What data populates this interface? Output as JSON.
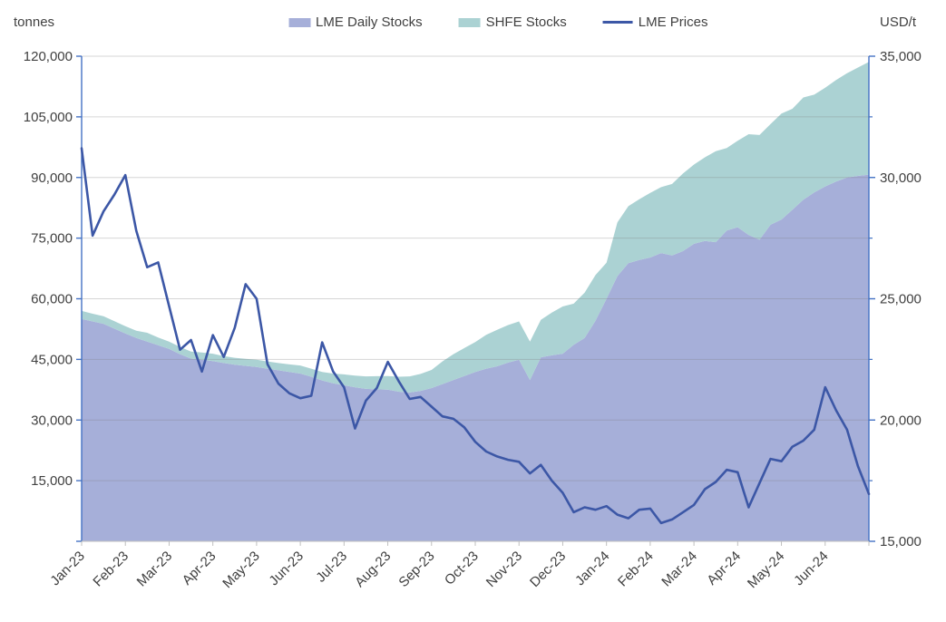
{
  "units": {
    "left": "tonnes",
    "right": "USD/t"
  },
  "legend": [
    {
      "label": "LME Daily Stocks",
      "marker": "area-swatch",
      "color": "#a6afd9"
    },
    {
      "label": "SHFE Stocks",
      "marker": "area-swatch",
      "color": "#abd2d3"
    },
    {
      "label": "LME Prices",
      "marker": "line-swatch",
      "color": "#3c57a6"
    }
  ],
  "chart_data": {
    "type": "combo",
    "subtype": "stacked-area + line, dual axis",
    "title": "",
    "x": {
      "tick_labels": [
        "Jan-23",
        "Feb-23",
        "Mar-23",
        "Apr-23",
        "May-23",
        "Jun-23",
        "Jul-23",
        "Aug-23",
        "Sep-23",
        "Oct-23",
        "Nov-23",
        "Dec-23",
        "Jan-24",
        "Feb-24",
        "Mar-24",
        "Apr-24",
        "May-24",
        "Jun-24"
      ],
      "points_per_month": 4,
      "note": "series sampled ~weekly, 73 points, Jan-2023 through end Jun-2024"
    },
    "y_left": {
      "unit": "tonnes",
      "min": 0,
      "max": 120000,
      "tick_step": 15000,
      "tick_labels": [
        "15,000",
        "30,000",
        "45,000",
        "60,000",
        "75,000",
        "90,000",
        "105,000",
        "120,000"
      ]
    },
    "y_right": {
      "unit": "USD/t",
      "min": 15000,
      "max": 35000,
      "tick_step": 5000,
      "minor_tick_step": 2500,
      "tick_labels": [
        "15,000",
        "20,000",
        "25,000",
        "30,000",
        "35,000"
      ]
    },
    "grid": true,
    "legend_position": "top-center",
    "series": [
      {
        "name": "LME Daily Stocks",
        "type": "area",
        "stacked": true,
        "axis": "left",
        "color": "#a6afd9",
        "values": [
          55000,
          54400,
          53800,
          52600,
          51400,
          50300,
          49400,
          48500,
          47600,
          46300,
          45200,
          44900,
          44600,
          44100,
          43700,
          43400,
          43100,
          42700,
          42300,
          41900,
          41500,
          40700,
          39800,
          39100,
          38600,
          38100,
          37700,
          37600,
          37500,
          37000,
          36800,
          37200,
          37900,
          38900,
          39900,
          40900,
          41900,
          42700,
          43300,
          44200,
          44900,
          39900,
          45500,
          46000,
          46400,
          48600,
          50300,
          54600,
          60000,
          65600,
          68800,
          69600,
          70200,
          71300,
          70700,
          71800,
          73600,
          74300,
          74000,
          76900,
          77700,
          75800,
          74600,
          78300,
          79600,
          82000,
          84500,
          86300,
          87800,
          89000,
          90000,
          90400,
          90700
        ]
      },
      {
        "name": "SHFE Stocks",
        "type": "area",
        "stacked": true,
        "axis": "left",
        "color": "#abd2d3",
        "values": [
          2000,
          1900,
          1900,
          1850,
          1800,
          1800,
          2200,
          1900,
          1800,
          1800,
          1750,
          1800,
          1800,
          1700,
          1700,
          1750,
          1800,
          1800,
          1800,
          1850,
          2000,
          2000,
          2100,
          2400,
          2700,
          2900,
          3100,
          3250,
          3400,
          3700,
          4000,
          4200,
          4500,
          5600,
          6400,
          6900,
          7400,
          8400,
          9000,
          9300,
          9500,
          9500,
          9300,
          10600,
          11700,
          10200,
          11200,
          11300,
          8900,
          13300,
          14100,
          15000,
          16000,
          16300,
          17700,
          19200,
          19600,
          20700,
          22500,
          20400,
          21400,
          24900,
          25900,
          24900,
          26200,
          25000,
          25300,
          24200,
          24400,
          25100,
          25800,
          26800,
          27900
        ]
      },
      {
        "name": "LME Prices",
        "type": "line",
        "stacked": false,
        "axis": "right",
        "color": "#3c57a6",
        "values": [
          31200,
          27600,
          28600,
          29300,
          30100,
          27800,
          26300,
          26500,
          24700,
          22900,
          23300,
          22000,
          23500,
          22600,
          23800,
          25600,
          25000,
          22300,
          21500,
          21100,
          20900,
          21000,
          23200,
          22000,
          21350,
          19650,
          20800,
          21320,
          22400,
          21600,
          20870,
          20950,
          20550,
          20150,
          20050,
          19700,
          19100,
          18700,
          18500,
          18360,
          18280,
          17800,
          18150,
          17500,
          17000,
          16200,
          16400,
          16300,
          16450,
          16100,
          15950,
          16300,
          16350,
          15750,
          15900,
          16200,
          16500,
          17150,
          17450,
          17950,
          17850,
          16400,
          17400,
          18400,
          18300,
          18900,
          19150,
          19600,
          21350,
          20400,
          19600,
          18100,
          16950
        ]
      }
    ],
    "colors": {
      "axis_line": "#4472c4",
      "x_axis_line": "#bfbfbf",
      "gridline": "#d9d9d9",
      "text": "#404040"
    }
  }
}
